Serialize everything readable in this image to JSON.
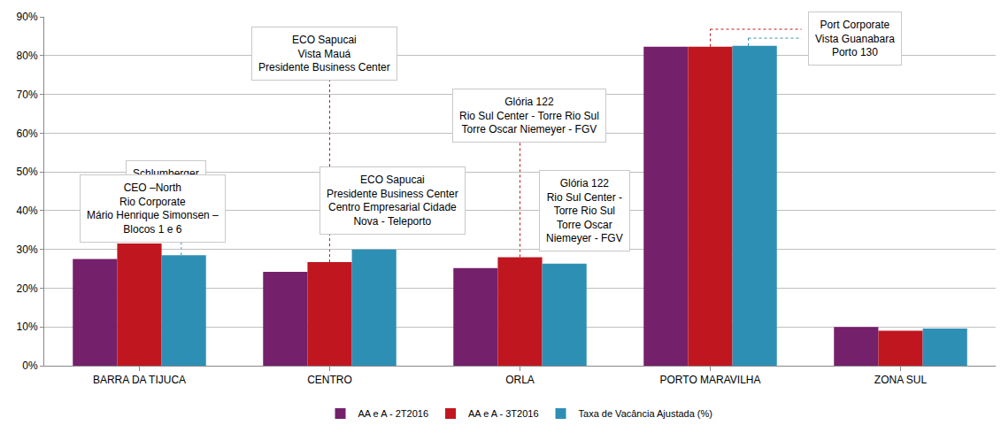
{
  "chart_data": {
    "type": "bar",
    "categories": [
      "BARRA DA TIJUCA",
      "CENTRO",
      "ORLA",
      "PORTO MARAVILHA",
      "ZONA SUL"
    ],
    "series": [
      {
        "name": "AA e A - 2T2016",
        "color": "#74206b",
        "values": [
          27.5,
          24.2,
          25.2,
          82.3,
          10.0
        ]
      },
      {
        "name": "AA e A - 3T2016",
        "color": "#c0161f",
        "values": [
          31.5,
          26.7,
          28.0,
          82.3,
          9.0
        ]
      },
      {
        "name": "Taxa de Vacância Ajustada (%)",
        "color": "#2e8fb5",
        "values": [
          28.5,
          30.0,
          26.3,
          82.5,
          9.6
        ]
      }
    ],
    "ylim": [
      0,
      90
    ],
    "yticks": [
      {
        "value": 0,
        "label": "0%"
      },
      {
        "value": 10,
        "label": "10%"
      },
      {
        "value": 20,
        "label": "20%"
      },
      {
        "value": 30,
        "label": "30%"
      },
      {
        "value": 40,
        "label": "40%"
      },
      {
        "value": 50,
        "label": "50%"
      },
      {
        "value": 60,
        "label": "60%"
      },
      {
        "value": 70,
        "label": "70%"
      },
      {
        "value": 80,
        "label": "80%"
      },
      {
        "value": 90,
        "label": "90%"
      }
    ],
    "grid": true,
    "legend": "bottom",
    "annotations": [
      {
        "category": "BARRA DA TIJUCA",
        "lines": [
          "Schlumberger"
        ]
      },
      {
        "category": "BARRA DA TIJUCA",
        "lines": [
          "CEO –North",
          "Rio Corporate",
          "Mário Henrique Simonsen –",
          "Blocos 1 e 6"
        ]
      },
      {
        "category": "CENTRO",
        "lines": [
          "ECO Sapucai",
          "Vista Mauá",
          "Presidente Business Center"
        ]
      },
      {
        "category": "CENTRO",
        "lines": [
          "ECO Sapucai",
          "Presidente Business Center",
          "Centro Empresarial Cidade",
          "Nova - Teleporto"
        ]
      },
      {
        "category": "ORLA",
        "lines": [
          "Glória 122",
          "Rio Sul Center - Torre Rio Sul",
          "Torre Oscar Niemeyer - FGV"
        ]
      },
      {
        "category": "ORLA",
        "lines": [
          "Glória 122",
          "Rio Sul Center -",
          "Torre Rio Sul",
          "Torre Oscar",
          "Niemeyer - FGV"
        ]
      },
      {
        "category": "PORTO MARAVILHA",
        "lines": [
          "Port Corporate",
          "Vista Guanabara",
          "Porto 130"
        ]
      }
    ]
  }
}
